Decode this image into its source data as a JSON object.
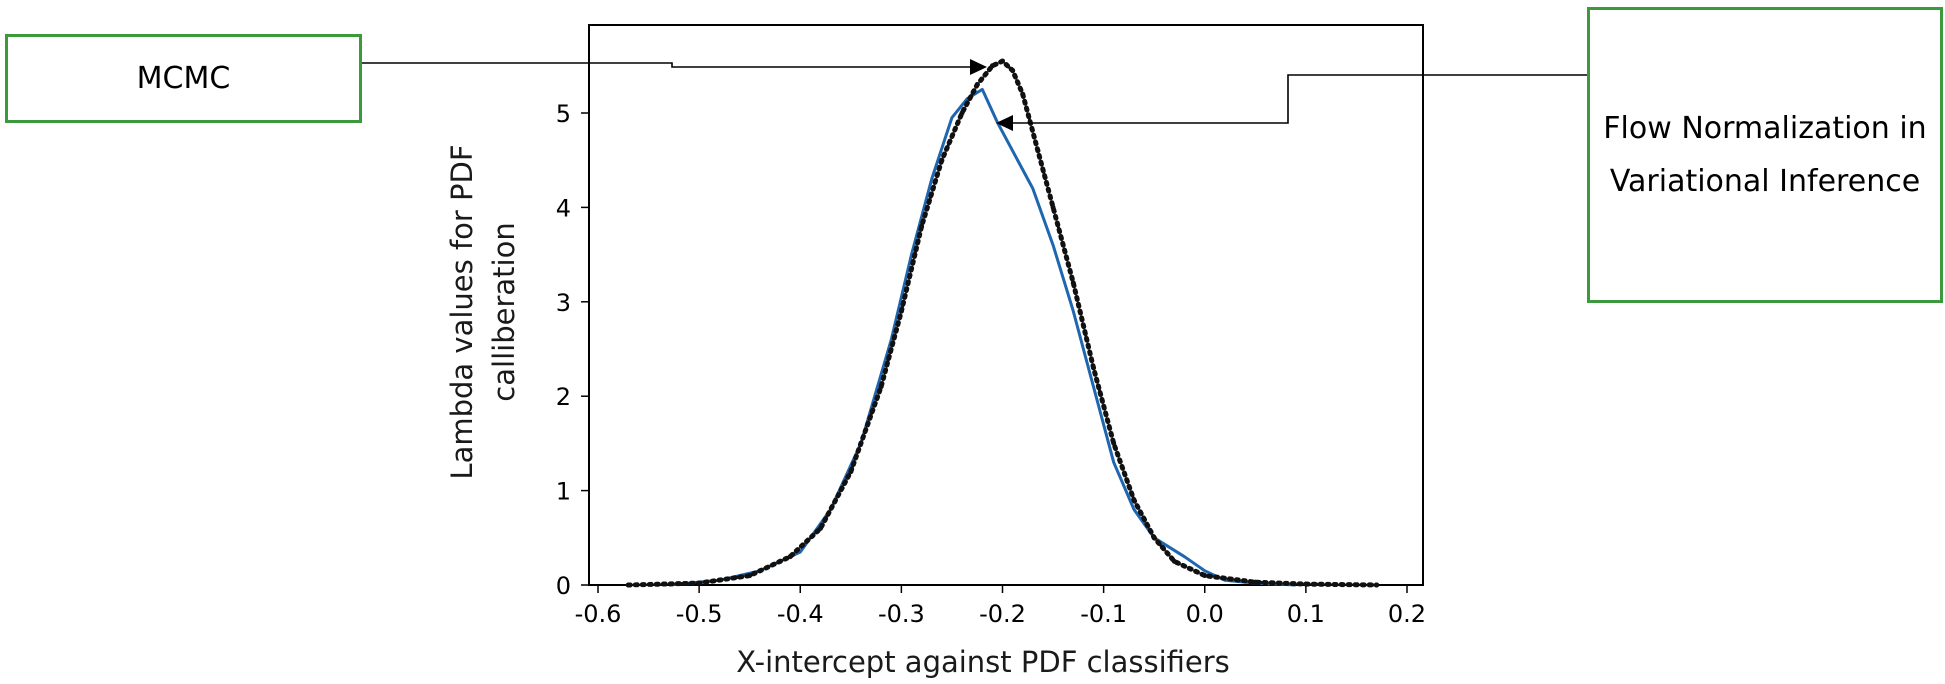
{
  "chart_data": {
    "type": "line",
    "title": "",
    "xlabel": "X-intercept against PDF classifiers",
    "ylabel_lines": [
      "Lambda values for PDF",
      "calliberation"
    ],
    "xlim": [
      -0.6,
      0.2
    ],
    "ylim": [
      0,
      5.5
    ],
    "x_ticks": [
      -0.6,
      -0.5,
      -0.4,
      -0.3,
      -0.2,
      -0.1,
      0.0,
      0.1,
      0.2
    ],
    "x_tick_labels": [
      "-0.6",
      "-0.5",
      "-0.4",
      "-0.3",
      "-0.2",
      "-0.1",
      "0.0",
      "0.1",
      "0.2"
    ],
    "y_ticks": [
      0,
      1,
      2,
      3,
      4,
      5
    ],
    "y_tick_labels": [
      "0",
      "1",
      "2",
      "3",
      "4",
      "5"
    ],
    "grid": false,
    "series": [
      {
        "style": "solid",
        "color": "#1f66b0",
        "x": [
          -0.53,
          -0.48,
          -0.44,
          -0.4,
          -0.37,
          -0.34,
          -0.31,
          -0.29,
          -0.27,
          -0.25,
          -0.235,
          -0.22,
          -0.205,
          -0.19,
          -0.17,
          -0.15,
          -0.13,
          -0.11,
          -0.09,
          -0.07,
          -0.05,
          -0.02,
          0.0,
          0.02,
          0.05,
          0.09
        ],
        "y": [
          0.0,
          0.05,
          0.15,
          0.35,
          0.8,
          1.5,
          2.6,
          3.5,
          4.3,
          4.95,
          5.15,
          5.25,
          4.9,
          4.6,
          4.2,
          3.6,
          2.9,
          2.1,
          1.3,
          0.8,
          0.5,
          0.3,
          0.15,
          0.05,
          0.02,
          0.0
        ]
      },
      {
        "style": "dotted",
        "color": "#111111",
        "x": [
          -0.57,
          -0.5,
          -0.45,
          -0.41,
          -0.38,
          -0.35,
          -0.32,
          -0.3,
          -0.28,
          -0.26,
          -0.24,
          -0.225,
          -0.21,
          -0.2,
          -0.19,
          -0.18,
          -0.165,
          -0.15,
          -0.13,
          -0.11,
          -0.09,
          -0.07,
          -0.05,
          -0.03,
          0.0,
          0.05,
          0.1,
          0.17
        ],
        "y": [
          0.0,
          0.02,
          0.1,
          0.3,
          0.6,
          1.2,
          2.1,
          2.9,
          3.8,
          4.5,
          5.0,
          5.3,
          5.5,
          5.55,
          5.45,
          5.2,
          4.6,
          4.0,
          3.2,
          2.3,
          1.5,
          0.9,
          0.5,
          0.25,
          0.1,
          0.03,
          0.01,
          0.0
        ]
      }
    ]
  },
  "annotations": {
    "mcmc_label": "MCMC",
    "flow_label": "Flow Normalization in Variational Inference"
  },
  "colors": {
    "blue_series": "#1f66b0",
    "dotted_series": "#111111",
    "callout_border": "#3c9a3c"
  }
}
